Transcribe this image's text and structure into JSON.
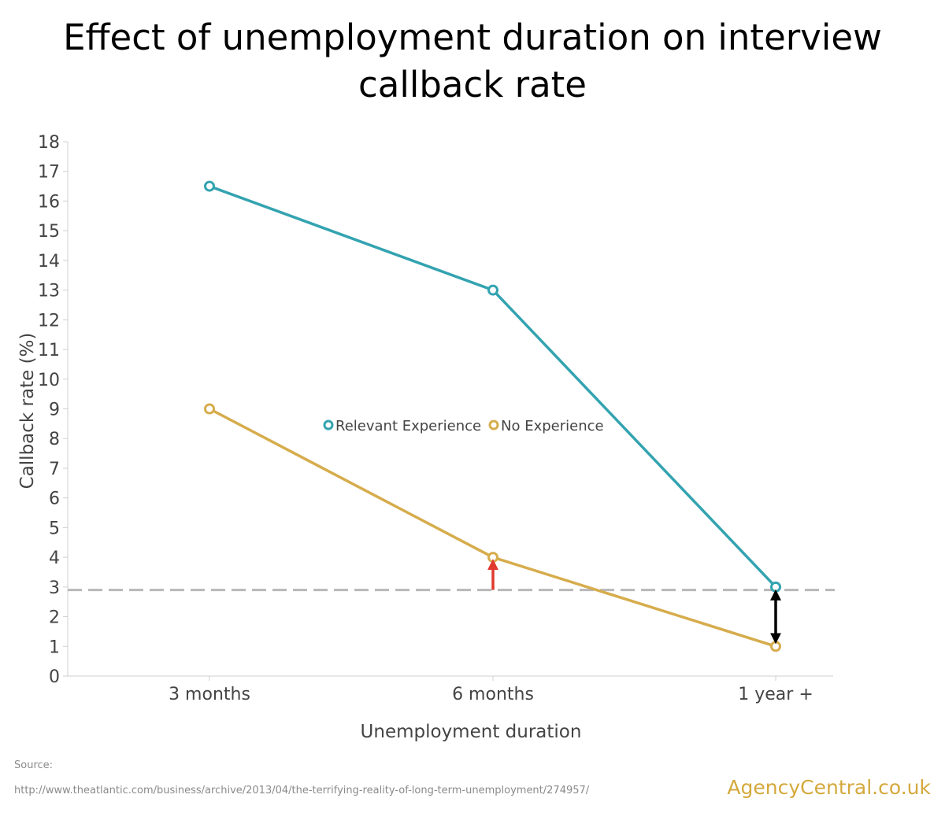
{
  "title_line1": "Effect of unemployment duration on interview",
  "title_line2": "callback rate",
  "source_label": "Source:",
  "source_url": "http://www.theatlantic.com/business/archive/2013/04/the-terrifying-reality-of-long-term-unemployment/274957/",
  "brand": "AgencyCentral.co.uk",
  "chart_data": {
    "type": "line",
    "categories": [
      "3 months",
      "6 months",
      "1 year +"
    ],
    "series": [
      {
        "name": "Relevant Experience",
        "color": "#33a3b0",
        "values": [
          16.5,
          13,
          3
        ]
      },
      {
        "name": "No Experience",
        "color": "#d6ac4c",
        "values": [
          9,
          4,
          1
        ]
      }
    ],
    "xlabel": "Unemployment duration",
    "ylabel": "Callback rate (%)",
    "ylim": [
      0,
      18
    ],
    "yticks": [
      0,
      1,
      2,
      3,
      4,
      5,
      6,
      7,
      8,
      9,
      10,
      11,
      12,
      13,
      14,
      15,
      16,
      17,
      18
    ],
    "reference_line": {
      "y": 2.9,
      "color": "#b8b8b8",
      "style": "dashed"
    },
    "annotations": [
      {
        "type": "arrow",
        "category": "6 months",
        "from": 2.9,
        "to": 4,
        "color": "#e03a2f"
      },
      {
        "type": "double-arrow",
        "category": "1 year +",
        "from": 1,
        "to": 3,
        "color": "#000000"
      }
    ],
    "legend": "center",
    "grid": false
  }
}
